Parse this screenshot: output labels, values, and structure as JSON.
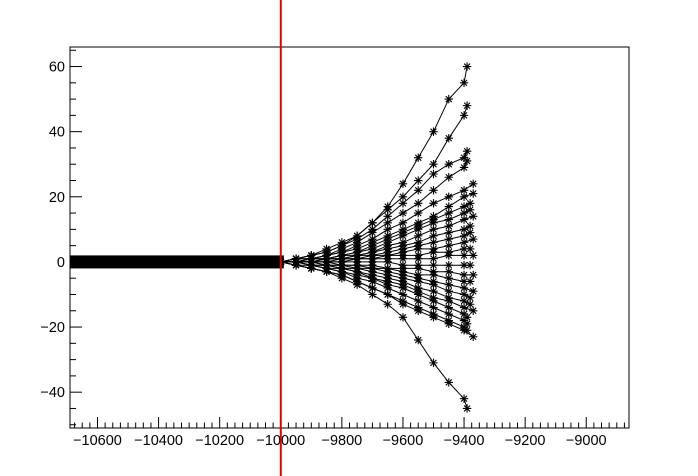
{
  "chart_data": {
    "type": "line",
    "title": "",
    "xlabel": "",
    "ylabel": "",
    "xlim": [
      -10690,
      -8860
    ],
    "ylim": [
      -51,
      66
    ],
    "x_ticks": [
      -10600,
      -10400,
      -10200,
      -10000,
      -9800,
      -9600,
      -9400,
      -9200,
      -9000
    ],
    "x_tick_labels": [
      "−10600",
      "−10400",
      "−10200",
      "−10000",
      "−9800",
      "−9600",
      "−9400",
      "−9200",
      "−9000"
    ],
    "y_ticks": [
      -40,
      -20,
      0,
      20,
      40,
      60
    ],
    "y_tick_labels": [
      "−40",
      "−20",
      "0",
      "20",
      "40",
      "60"
    ],
    "marker": "asterisk",
    "marker_color": "#000000",
    "line_color": "#000000",
    "grid": false,
    "legend": "none",
    "vertical_line": {
      "x": -10000,
      "color": "#e00000"
    },
    "baseline_band": {
      "x_range": [
        -10690,
        -9990
      ],
      "y_range": [
        -2,
        2
      ]
    },
    "series": [
      {
        "x": [
          -10000,
          -9950,
          -9900,
          -9850,
          -9800,
          -9750,
          -9700,
          -9650,
          -9600,
          -9550,
          -9500,
          -9450,
          -9400,
          -9390
        ],
        "y": [
          0,
          1,
          2,
          4,
          6,
          8,
          12,
          17,
          24,
          32,
          40,
          50,
          55,
          60
        ]
      },
      {
        "x": [
          -10000,
          -9950,
          -9900,
          -9850,
          -9800,
          -9750,
          -9700,
          -9650,
          -9600,
          -9550,
          -9500,
          -9450,
          -9400,
          -9390
        ],
        "y": [
          0,
          1,
          2,
          3,
          5,
          8,
          12,
          16,
          20,
          25,
          30,
          38,
          45,
          48
        ]
      },
      {
        "x": [
          -10000,
          -9950,
          -9900,
          -9850,
          -9800,
          -9750,
          -9700,
          -9650,
          -9600,
          -9550,
          -9500,
          -9450,
          -9400,
          -9390
        ],
        "y": [
          0,
          1,
          2,
          3,
          5,
          7,
          10,
          14,
          18,
          22,
          27,
          30,
          32,
          34
        ]
      },
      {
        "x": [
          -10000,
          -9950,
          -9900,
          -9850,
          -9800,
          -9750,
          -9700,
          -9650,
          -9600,
          -9550,
          -9500,
          -9450,
          -9400,
          -9390
        ],
        "y": [
          0,
          1,
          1,
          2,
          4,
          6,
          9,
          12,
          15,
          18,
          22,
          26,
          29,
          31
        ]
      },
      {
        "x": [
          -10000,
          -9950,
          -9900,
          -9850,
          -9800,
          -9750,
          -9700,
          -9650,
          -9600,
          -9550,
          -9500,
          -9450,
          -9400,
          -9370
        ],
        "y": [
          0,
          1,
          1,
          2,
          3,
          5,
          7,
          10,
          12,
          15,
          18,
          20,
          22,
          24
        ]
      },
      {
        "x": [
          -10000,
          -9950,
          -9900,
          -9850,
          -9800,
          -9750,
          -9700,
          -9650,
          -9600,
          -9550,
          -9500,
          -9450,
          -9400,
          -9370
        ],
        "y": [
          0,
          0,
          1,
          2,
          3,
          4,
          6,
          8,
          10,
          12,
          14,
          17,
          20,
          21
        ]
      },
      {
        "x": [
          -10000,
          -9950,
          -9900,
          -9850,
          -9800,
          -9750,
          -9700,
          -9650,
          -9600,
          -9550,
          -9500,
          -9450,
          -9400,
          -9380
        ],
        "y": [
          0,
          0,
          1,
          1,
          2,
          3,
          5,
          7,
          9,
          11,
          13,
          15,
          17,
          18
        ]
      },
      {
        "x": [
          -10000,
          -9950,
          -9900,
          -9850,
          -9800,
          -9750,
          -9700,
          -9650,
          -9600,
          -9550,
          -9500,
          -9450,
          -9400,
          -9380
        ],
        "y": [
          0,
          0,
          1,
          1,
          2,
          3,
          4,
          6,
          8,
          10,
          12,
          13,
          15,
          16
        ]
      },
      {
        "x": [
          -10000,
          -9950,
          -9900,
          -9850,
          -9800,
          -9750,
          -9700,
          -9650,
          -9600,
          -9550,
          -9500,
          -9450,
          -9400,
          -9370
        ],
        "y": [
          0,
          0,
          1,
          1,
          2,
          2,
          3,
          5,
          6,
          8,
          10,
          11,
          13,
          14
        ]
      },
      {
        "x": [
          -10000,
          -9950,
          -9900,
          -9850,
          -9800,
          -9750,
          -9700,
          -9650,
          -9600,
          -9550,
          -9500,
          -9450,
          -9400,
          -9380
        ],
        "y": [
          0,
          0,
          0,
          1,
          1,
          2,
          3,
          4,
          5,
          6,
          8,
          9,
          10,
          11
        ]
      },
      {
        "x": [
          -10000,
          -9950,
          -9900,
          -9850,
          -9800,
          -9750,
          -9700,
          -9650,
          -9600,
          -9550,
          -9500,
          -9450,
          -9400,
          -9380
        ],
        "y": [
          0,
          0,
          0,
          1,
          1,
          2,
          2,
          3,
          4,
          5,
          6,
          7,
          8,
          9
        ]
      },
      {
        "x": [
          -10000,
          -9950,
          -9900,
          -9850,
          -9800,
          -9750,
          -9700,
          -9650,
          -9600,
          -9550,
          -9500,
          -9450,
          -9400,
          -9370
        ],
        "y": [
          0,
          0,
          0,
          1,
          1,
          1,
          2,
          2,
          3,
          4,
          4,
          5,
          6,
          7
        ]
      },
      {
        "x": [
          -10000,
          -9950,
          -9900,
          -9850,
          -9800,
          -9750,
          -9700,
          -9650,
          -9600,
          -9550,
          -9500,
          -9450,
          -9400,
          -9380
        ],
        "y": [
          0,
          0,
          0,
          0,
          1,
          1,
          1,
          2,
          2,
          2,
          3,
          3,
          4,
          4
        ]
      },
      {
        "x": [
          -10000,
          -9950,
          -9900,
          -9850,
          -9800,
          -9750,
          -9700,
          -9650,
          -9600,
          -9550,
          -9500,
          -9450,
          -9400,
          -9370
        ],
        "y": [
          0,
          0,
          0,
          0,
          0,
          1,
          1,
          1,
          1,
          1,
          1,
          2,
          2,
          2
        ]
      },
      {
        "x": [
          -10000,
          -9950,
          -9900,
          -9850,
          -9800,
          -9750,
          -9700,
          -9650,
          -9600,
          -9550,
          -9500,
          -9450,
          -9400,
          -9380
        ],
        "y": [
          0,
          0,
          0,
          0,
          0,
          0,
          0,
          0,
          -1,
          -1,
          -1,
          -1,
          -1,
          -1
        ]
      },
      {
        "x": [
          -10000,
          -9950,
          -9900,
          -9850,
          -9800,
          -9750,
          -9700,
          -9650,
          -9600,
          -9550,
          -9500,
          -9450,
          -9400,
          -9370
        ],
        "y": [
          0,
          0,
          0,
          0,
          -1,
          -1,
          -1,
          -2,
          -2,
          -2,
          -3,
          -3,
          -4,
          -4
        ]
      },
      {
        "x": [
          -10000,
          -9950,
          -9900,
          -9850,
          -9800,
          -9750,
          -9700,
          -9650,
          -9600,
          -9550,
          -9500,
          -9450,
          -9400,
          -9380
        ],
        "y": [
          0,
          0,
          0,
          -1,
          -1,
          -1,
          -2,
          -2,
          -3,
          -4,
          -4,
          -5,
          -6,
          -6
        ]
      },
      {
        "x": [
          -10000,
          -9950,
          -9900,
          -9850,
          -9800,
          -9750,
          -9700,
          -9650,
          -9600,
          -9550,
          -9500,
          -9450,
          -9400,
          -9370
        ],
        "y": [
          0,
          0,
          0,
          -1,
          -1,
          -2,
          -2,
          -3,
          -4,
          -5,
          -6,
          -7,
          -8,
          -9
        ]
      },
      {
        "x": [
          -10000,
          -9950,
          -9900,
          -9850,
          -9800,
          -9750,
          -9700,
          -9650,
          -9600,
          -9550,
          -9500,
          -9450,
          -9400,
          -9380
        ],
        "y": [
          0,
          0,
          -1,
          -1,
          -2,
          -2,
          -3,
          -4,
          -5,
          -6,
          -7,
          -9,
          -10,
          -11
        ]
      },
      {
        "x": [
          -10000,
          -9950,
          -9900,
          -9850,
          -9800,
          -9750,
          -9700,
          -9650,
          -9600,
          -9550,
          -9500,
          -9450,
          -9400,
          -9380
        ],
        "y": [
          0,
          0,
          -1,
          -1,
          -2,
          -3,
          -4,
          -5,
          -6,
          -8,
          -9,
          -11,
          -12,
          -13
        ]
      },
      {
        "x": [
          -10000,
          -9950,
          -9900,
          -9850,
          -9800,
          -9750,
          -9700,
          -9650,
          -9600,
          -9550,
          -9500,
          -9450,
          -9400,
          -9370
        ],
        "y": [
          0,
          0,
          -1,
          -2,
          -2,
          -3,
          -5,
          -6,
          -7,
          -9,
          -11,
          -12,
          -14,
          -15
        ]
      },
      {
        "x": [
          -10000,
          -9950,
          -9900,
          -9850,
          -9800,
          -9750,
          -9700,
          -9650,
          -9600,
          -9550,
          -9500,
          -9450,
          -9400,
          -9390
        ],
        "y": [
          0,
          0,
          -1,
          -2,
          -3,
          -4,
          -5,
          -7,
          -8,
          -10,
          -12,
          -14,
          -16,
          -17
        ]
      },
      {
        "x": [
          -10000,
          -9950,
          -9900,
          -9850,
          -9800,
          -9750,
          -9700,
          -9650,
          -9600,
          -9550,
          -9500,
          -9450,
          -9400,
          -9390
        ],
        "y": [
          0,
          -1,
          -1,
          -2,
          -3,
          -5,
          -6,
          -8,
          -10,
          -12,
          -14,
          -16,
          -18,
          -19
        ]
      },
      {
        "x": [
          -10000,
          -9950,
          -9900,
          -9850,
          -9800,
          -9750,
          -9700,
          -9650,
          -9600,
          -9550,
          -9500,
          -9450,
          -9400,
          -9390
        ],
        "y": [
          0,
          -1,
          -2,
          -3,
          -4,
          -6,
          -8,
          -10,
          -12,
          -14,
          -16,
          -18,
          -20,
          -21
        ]
      },
      {
        "x": [
          -10000,
          -9950,
          -9900,
          -9850,
          -9800,
          -9750,
          -9700,
          -9650,
          -9600,
          -9550,
          -9500,
          -9450,
          -9400,
          -9370
        ],
        "y": [
          0,
          -1,
          -2,
          -3,
          -4,
          -6,
          -8,
          -10,
          -13,
          -15,
          -17,
          -19,
          -21,
          -23
        ]
      },
      {
        "x": [
          -10000,
          -9950,
          -9900,
          -9850,
          -9800,
          -9750,
          -9700,
          -9650,
          -9600,
          -9550,
          -9500,
          -9450,
          -9400,
          -9390
        ],
        "y": [
          0,
          -1,
          -2,
          -3,
          -5,
          -7,
          -10,
          -13,
          -17,
          -24,
          -31,
          -37,
          -42,
          -45
        ]
      }
    ]
  }
}
